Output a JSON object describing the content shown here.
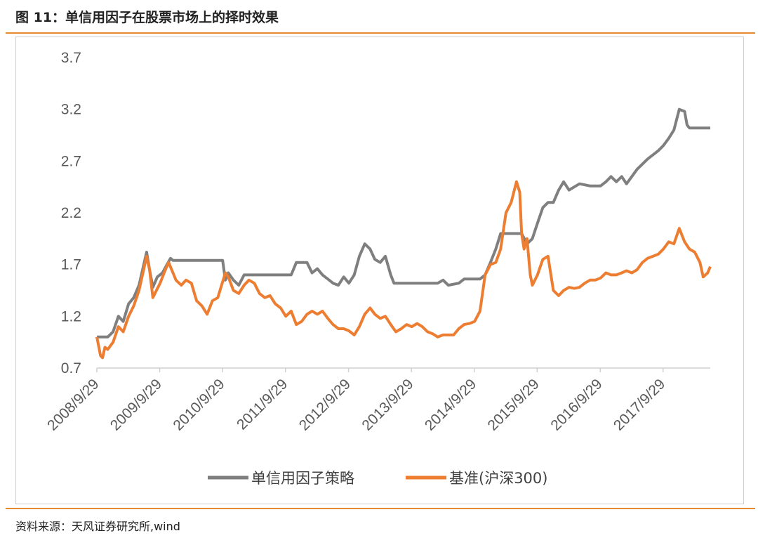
{
  "figure": {
    "title": "图 11：单信用因子在股票市场上的择时效果",
    "source": "资料来源：天风证券研究所,wind"
  },
  "chart_data": {
    "type": "line",
    "title": "",
    "xlabel": "",
    "ylabel": "",
    "ylim": [
      0.7,
      3.7
    ],
    "yticks": [
      "0.7",
      "1.2",
      "1.7",
      "2.2",
      "2.7",
      "3.2",
      "3.7"
    ],
    "xticks": [
      "2008/9/29",
      "2009/9/29",
      "2010/9/29",
      "2011/9/29",
      "2012/9/29",
      "2013/9/29",
      "2014/9/29",
      "2015/9/29",
      "2016/9/29",
      "2017/9/29"
    ],
    "grid": false,
    "legend_position": "bottom",
    "series": [
      {
        "name": "单信用因子策略",
        "color": "#7f7f7f",
        "points": [
          [
            "2008-09-29",
            1.0
          ],
          [
            "2008-12-01",
            1.0
          ],
          [
            "2009-01-01",
            1.05
          ],
          [
            "2009-02-01",
            1.2
          ],
          [
            "2009-03-01",
            1.15
          ],
          [
            "2009-04-01",
            1.32
          ],
          [
            "2009-05-01",
            1.38
          ],
          [
            "2009-06-01",
            1.5
          ],
          [
            "2009-07-15",
            1.82
          ],
          [
            "2009-08-01",
            1.65
          ],
          [
            "2009-08-20",
            1.48
          ],
          [
            "2009-09-15",
            1.58
          ],
          [
            "2009-10-15",
            1.62
          ],
          [
            "2009-11-10",
            1.7
          ],
          [
            "2009-12-01",
            1.76
          ],
          [
            "2009-12-15",
            1.74
          ],
          [
            "2010-09-29",
            1.74
          ],
          [
            "2010-10-15",
            1.55
          ],
          [
            "2010-11-01",
            1.62
          ],
          [
            "2010-12-01",
            1.55
          ],
          [
            "2011-01-01",
            1.5
          ],
          [
            "2011-02-01",
            1.6
          ],
          [
            "2011-08-01",
            1.6
          ],
          [
            "2011-11-01",
            1.6
          ],
          [
            "2011-12-01",
            1.72
          ],
          [
            "2012-02-01",
            1.72
          ],
          [
            "2012-03-01",
            1.62
          ],
          [
            "2012-04-01",
            1.66
          ],
          [
            "2012-05-01",
            1.6
          ],
          [
            "2012-06-01",
            1.56
          ],
          [
            "2012-07-01",
            1.52
          ],
          [
            "2012-08-01",
            1.5
          ],
          [
            "2012-09-01",
            1.58
          ],
          [
            "2012-10-01",
            1.52
          ],
          [
            "2012-11-01",
            1.6
          ],
          [
            "2012-12-01",
            1.78
          ],
          [
            "2013-01-01",
            1.9
          ],
          [
            "2013-02-01",
            1.85
          ],
          [
            "2013-03-01",
            1.75
          ],
          [
            "2013-04-01",
            1.72
          ],
          [
            "2013-05-01",
            1.78
          ],
          [
            "2013-06-01",
            1.6
          ],
          [
            "2013-06-20",
            1.52
          ],
          [
            "2013-09-29",
            1.52
          ],
          [
            "2014-03-01",
            1.52
          ],
          [
            "2014-04-01",
            1.55
          ],
          [
            "2014-05-01",
            1.5
          ],
          [
            "2014-07-01",
            1.52
          ],
          [
            "2014-08-01",
            1.56
          ],
          [
            "2014-11-01",
            1.56
          ],
          [
            "2014-12-01",
            1.6
          ],
          [
            "2015-01-01",
            1.72
          ],
          [
            "2015-02-01",
            1.85
          ],
          [
            "2015-03-01",
            2.0
          ],
          [
            "2015-07-01",
            2.0
          ],
          [
            "2015-08-01",
            1.9
          ],
          [
            "2015-09-01",
            1.95
          ],
          [
            "2015-10-01",
            2.1
          ],
          [
            "2015-11-01",
            2.25
          ],
          [
            "2015-12-01",
            2.3
          ],
          [
            "2016-01-01",
            2.3
          ],
          [
            "2016-02-01",
            2.42
          ],
          [
            "2016-03-01",
            2.5
          ],
          [
            "2016-04-01",
            2.42
          ],
          [
            "2016-05-01",
            2.45
          ],
          [
            "2016-06-01",
            2.48
          ],
          [
            "2016-08-01",
            2.46
          ],
          [
            "2016-10-01",
            2.46
          ],
          [
            "2016-11-01",
            2.5
          ],
          [
            "2016-12-01",
            2.55
          ],
          [
            "2017-01-01",
            2.5
          ],
          [
            "2017-02-01",
            2.55
          ],
          [
            "2017-03-01",
            2.48
          ],
          [
            "2017-05-01",
            2.62
          ],
          [
            "2017-07-01",
            2.72
          ],
          [
            "2017-09-01",
            2.8
          ],
          [
            "2017-10-01",
            2.85
          ],
          [
            "2017-11-01",
            2.92
          ],
          [
            "2017-12-01",
            3.0
          ],
          [
            "2018-01-01",
            3.2
          ],
          [
            "2018-02-01",
            3.18
          ],
          [
            "2018-02-15",
            3.05
          ],
          [
            "2018-03-01",
            3.02
          ],
          [
            "2018-06-30",
            3.02
          ]
        ]
      },
      {
        "name": "基准(沪深300)",
        "color": "#ed7d31",
        "points": [
          [
            "2008-09-29",
            1.0
          ],
          [
            "2008-10-20",
            0.82
          ],
          [
            "2008-11-01",
            0.8
          ],
          [
            "2008-11-15",
            0.9
          ],
          [
            "2008-12-01",
            0.88
          ],
          [
            "2009-01-01",
            0.95
          ],
          [
            "2009-02-01",
            1.1
          ],
          [
            "2009-03-01",
            1.05
          ],
          [
            "2009-04-01",
            1.2
          ],
          [
            "2009-05-01",
            1.3
          ],
          [
            "2009-06-01",
            1.45
          ],
          [
            "2009-07-15",
            1.78
          ],
          [
            "2009-08-01",
            1.65
          ],
          [
            "2009-08-20",
            1.38
          ],
          [
            "2009-09-01",
            1.42
          ],
          [
            "2009-10-01",
            1.52
          ],
          [
            "2009-11-01",
            1.65
          ],
          [
            "2009-11-20",
            1.72
          ],
          [
            "2009-12-15",
            1.62
          ],
          [
            "2010-01-01",
            1.55
          ],
          [
            "2010-02-01",
            1.5
          ],
          [
            "2010-03-01",
            1.55
          ],
          [
            "2010-04-01",
            1.52
          ],
          [
            "2010-05-01",
            1.35
          ],
          [
            "2010-06-01",
            1.3
          ],
          [
            "2010-07-01",
            1.22
          ],
          [
            "2010-08-01",
            1.35
          ],
          [
            "2010-09-01",
            1.38
          ],
          [
            "2010-10-15",
            1.62
          ],
          [
            "2010-11-01",
            1.58
          ],
          [
            "2010-12-01",
            1.45
          ],
          [
            "2011-01-01",
            1.42
          ],
          [
            "2011-02-01",
            1.5
          ],
          [
            "2011-03-01",
            1.55
          ],
          [
            "2011-04-01",
            1.52
          ],
          [
            "2011-05-01",
            1.42
          ],
          [
            "2011-06-01",
            1.38
          ],
          [
            "2011-07-01",
            1.4
          ],
          [
            "2011-08-01",
            1.32
          ],
          [
            "2011-09-01",
            1.28
          ],
          [
            "2011-10-01",
            1.2
          ],
          [
            "2011-11-01",
            1.25
          ],
          [
            "2011-12-01",
            1.12
          ],
          [
            "2012-01-01",
            1.15
          ],
          [
            "2012-02-01",
            1.22
          ],
          [
            "2012-03-01",
            1.25
          ],
          [
            "2012-04-01",
            1.22
          ],
          [
            "2012-05-01",
            1.25
          ],
          [
            "2012-06-01",
            1.18
          ],
          [
            "2012-07-01",
            1.12
          ],
          [
            "2012-08-01",
            1.08
          ],
          [
            "2012-09-01",
            1.08
          ],
          [
            "2012-10-01",
            1.06
          ],
          [
            "2012-11-01",
            1.02
          ],
          [
            "2012-12-01",
            1.1
          ],
          [
            "2013-01-01",
            1.22
          ],
          [
            "2013-02-01",
            1.28
          ],
          [
            "2013-03-01",
            1.22
          ],
          [
            "2013-04-01",
            1.18
          ],
          [
            "2013-05-01",
            1.2
          ],
          [
            "2013-06-01",
            1.12
          ],
          [
            "2013-07-01",
            1.05
          ],
          [
            "2013-08-01",
            1.08
          ],
          [
            "2013-09-01",
            1.12
          ],
          [
            "2013-10-01",
            1.1
          ],
          [
            "2013-11-01",
            1.13
          ],
          [
            "2013-12-01",
            1.1
          ],
          [
            "2014-01-01",
            1.05
          ],
          [
            "2014-02-01",
            1.03
          ],
          [
            "2014-03-01",
            1.0
          ],
          [
            "2014-04-01",
            1.02
          ],
          [
            "2014-05-01",
            1.02
          ],
          [
            "2014-06-01",
            1.02
          ],
          [
            "2014-07-01",
            1.08
          ],
          [
            "2014-08-01",
            1.12
          ],
          [
            "2014-09-01",
            1.13
          ],
          [
            "2014-10-01",
            1.15
          ],
          [
            "2014-11-01",
            1.25
          ],
          [
            "2014-12-01",
            1.6
          ],
          [
            "2015-01-01",
            1.7
          ],
          [
            "2015-02-01",
            1.72
          ],
          [
            "2015-03-01",
            1.85
          ],
          [
            "2015-04-01",
            2.2
          ],
          [
            "2015-05-01",
            2.3
          ],
          [
            "2015-06-01",
            2.5
          ],
          [
            "2015-06-20",
            2.4
          ],
          [
            "2015-07-01",
            2.0
          ],
          [
            "2015-07-15",
            1.85
          ],
          [
            "2015-08-01",
            1.95
          ],
          [
            "2015-08-20",
            1.6
          ],
          [
            "2015-09-01",
            1.5
          ],
          [
            "2015-10-01",
            1.6
          ],
          [
            "2015-11-01",
            1.75
          ],
          [
            "2015-12-01",
            1.78
          ],
          [
            "2016-01-01",
            1.45
          ],
          [
            "2016-02-01",
            1.4
          ],
          [
            "2016-03-01",
            1.45
          ],
          [
            "2016-04-01",
            1.48
          ],
          [
            "2016-05-01",
            1.47
          ],
          [
            "2016-06-01",
            1.48
          ],
          [
            "2016-07-01",
            1.52
          ],
          [
            "2016-08-01",
            1.55
          ],
          [
            "2016-09-01",
            1.55
          ],
          [
            "2016-10-01",
            1.57
          ],
          [
            "2016-11-01",
            1.62
          ],
          [
            "2016-12-01",
            1.6
          ],
          [
            "2017-01-01",
            1.6
          ],
          [
            "2017-02-01",
            1.62
          ],
          [
            "2017-03-01",
            1.64
          ],
          [
            "2017-04-01",
            1.62
          ],
          [
            "2017-05-01",
            1.65
          ],
          [
            "2017-06-01",
            1.72
          ],
          [
            "2017-07-01",
            1.76
          ],
          [
            "2017-08-01",
            1.78
          ],
          [
            "2017-09-01",
            1.8
          ],
          [
            "2017-10-01",
            1.85
          ],
          [
            "2017-11-01",
            1.92
          ],
          [
            "2017-12-01",
            1.9
          ],
          [
            "2018-01-01",
            2.05
          ],
          [
            "2018-02-01",
            1.92
          ],
          [
            "2018-03-01",
            1.85
          ],
          [
            "2018-04-01",
            1.82
          ],
          [
            "2018-05-01",
            1.72
          ],
          [
            "2018-05-20",
            1.58
          ],
          [
            "2018-06-15",
            1.62
          ],
          [
            "2018-06-30",
            1.68
          ]
        ]
      }
    ]
  }
}
